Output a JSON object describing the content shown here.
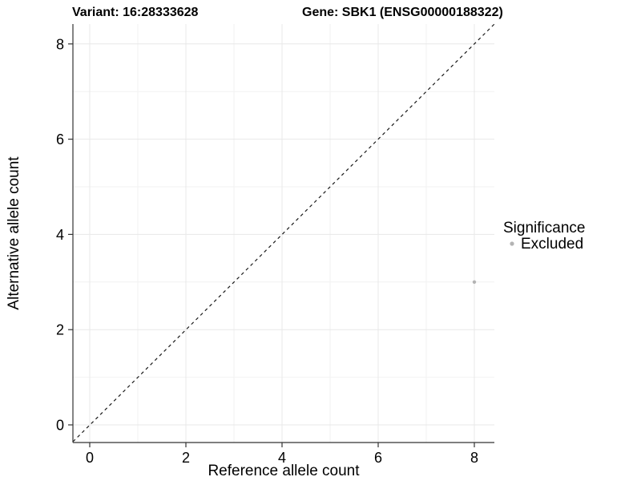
{
  "titles": {
    "variant": "Variant: 16:28333628",
    "gene": "Gene: SBK1 (ENSG00000188322)"
  },
  "axes": {
    "x_label": "Reference allele count",
    "y_label": "Alternative allele count"
  },
  "legend": {
    "title": "Significance",
    "items": [
      {
        "label": "Excluded",
        "color": "#b3b3b3"
      }
    ]
  },
  "colors": {
    "axis_line": "#333333",
    "grid_major": "#e8e8e8",
    "grid_minor": "#f2f2f2",
    "reference_line": "#1a1a1a",
    "excluded_point": "#b3b3b3"
  },
  "chart_data": {
    "type": "scatter",
    "title": "Variant: 16:28333628 — Gene: SBK1 (ENSG00000188322)",
    "xlabel": "Reference allele count",
    "ylabel": "Alternative allele count",
    "xlim": [
      -0.4,
      8.4
    ],
    "ylim": [
      -0.4,
      8.4
    ],
    "x_breaks": [
      0,
      2,
      4,
      6,
      8
    ],
    "y_breaks": [
      0,
      2,
      4,
      6,
      8
    ],
    "minor_breaks": [
      1,
      3,
      5,
      7
    ],
    "grid": true,
    "legend_position": "right",
    "series": [
      {
        "name": "Excluded",
        "color": "#b3b3b3",
        "points": [
          {
            "x": 8,
            "y": 3
          }
        ]
      }
    ],
    "reference_line": {
      "type": "identity (y = x)",
      "style": "dashed",
      "color": "#1a1a1a"
    }
  }
}
